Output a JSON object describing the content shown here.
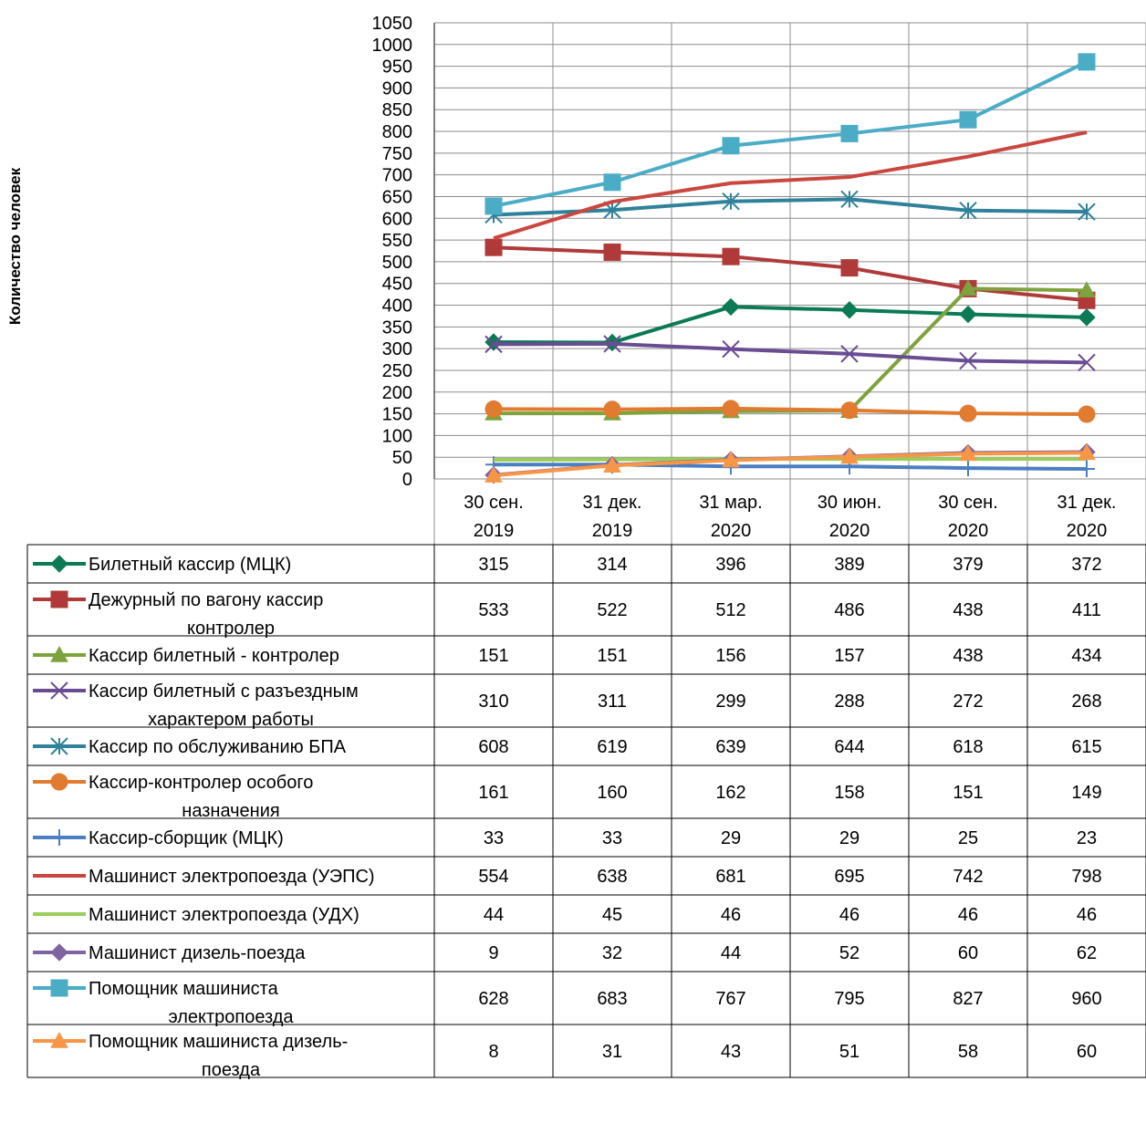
{
  "chart_data": {
    "type": "line",
    "title": "",
    "xlabel": "",
    "ylabel": "Количество человек",
    "ylim": [
      0,
      1050
    ],
    "ytick_step": 50,
    "grid": true,
    "legend": "data-table-below",
    "categories": [
      [
        "30 сен.",
        "2019"
      ],
      [
        "31 дек.",
        "2019"
      ],
      [
        "31 мар.",
        "2020"
      ],
      [
        "30 июн.",
        "2020"
      ],
      [
        "30 сен.",
        "2020"
      ],
      [
        "31 дек.",
        "2020"
      ]
    ],
    "series": [
      {
        "name": [
          "Билетный кассир (МЦК)"
        ],
        "color": "#0b7a55",
        "marker": "diamond",
        "values": [
          315,
          314,
          396,
          389,
          379,
          372
        ]
      },
      {
        "name": [
          "Дежурный по вагону кассир",
          "контролер"
        ],
        "color": "#b03a3a",
        "marker": "square",
        "values": [
          533,
          522,
          512,
          486,
          438,
          411
        ]
      },
      {
        "name": [
          "Кассир билетный - контролер"
        ],
        "color": "#7ea33d",
        "marker": "triangle",
        "values": [
          151,
          151,
          156,
          157,
          438,
          434
        ]
      },
      {
        "name": [
          "Кассир билетный с разъездным",
          "характером работы"
        ],
        "color": "#6a4c93",
        "marker": "x",
        "values": [
          310,
          311,
          299,
          288,
          272,
          268
        ]
      },
      {
        "name": [
          "Кассир по обслуживанию БПА"
        ],
        "color": "#2f8299",
        "marker": "star",
        "values": [
          608,
          619,
          639,
          644,
          618,
          615
        ]
      },
      {
        "name": [
          "Кассир-контролер особого",
          "назначения"
        ],
        "color": "#e07b2f",
        "marker": "circle",
        "values": [
          161,
          160,
          162,
          158,
          151,
          149
        ]
      },
      {
        "name": [
          "Кассир-сборщик (МЦК)"
        ],
        "color": "#4a7fc1",
        "marker": "plus",
        "values": [
          33,
          33,
          29,
          29,
          25,
          23
        ]
      },
      {
        "name": [
          "Машинист электропоезда (УЭПС)"
        ],
        "color": "#c9473f",
        "marker": "none",
        "values": [
          554,
          638,
          681,
          695,
          742,
          798
        ]
      },
      {
        "name": [
          "Машинист электропоезда (УДХ)"
        ],
        "color": "#9acd5a",
        "marker": "none",
        "values": [
          44,
          45,
          46,
          46,
          46,
          46
        ]
      },
      {
        "name": [
          "Машинист дизель-поезда"
        ],
        "color": "#8064a2",
        "marker": "diamond",
        "values": [
          9,
          32,
          44,
          52,
          60,
          62
        ]
      },
      {
        "name": [
          "Помощник машиниста",
          "электропоезда"
        ],
        "color": "#4bacc6",
        "marker": "square",
        "values": [
          628,
          683,
          767,
          795,
          827,
          960
        ]
      },
      {
        "name": [
          "Помощник машиниста дизель-",
          "поезда"
        ],
        "color": "#f79646",
        "marker": "triangle",
        "values": [
          8,
          31,
          43,
          51,
          58,
          60
        ]
      }
    ]
  }
}
